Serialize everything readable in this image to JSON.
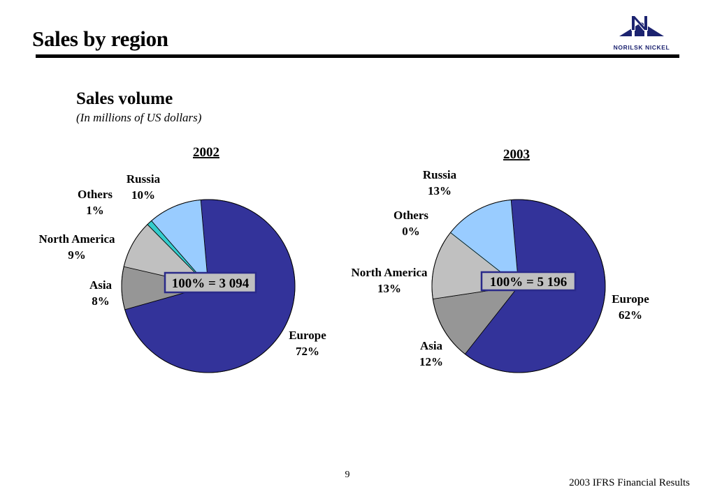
{
  "header": {
    "title": "Sales by region",
    "logo_text": "NORILSK NICKEL"
  },
  "section": {
    "subtitle": "Sales volume",
    "units": "(In millions of US dollars)"
  },
  "footer": {
    "page_number": "9",
    "text": "2003 IFRS Financial Results"
  },
  "colors": {
    "Europe": "#33339a",
    "Asia": "#969696",
    "North America": "#c0c0c0",
    "Others": "#33cccc",
    "Russia": "#99ccff",
    "logo": "#1c2370"
  },
  "chart_data": [
    {
      "type": "pie",
      "title": "2002",
      "total_label": "100% = 3 094",
      "slices": [
        {
          "name": "Europe",
          "value": 72,
          "label": "72%"
        },
        {
          "name": "Asia",
          "value": 8,
          "label": "8%"
        },
        {
          "name": "North America",
          "value": 9,
          "label": "9%"
        },
        {
          "name": "Others",
          "value": 1,
          "label": "1%"
        },
        {
          "name": "Russia",
          "value": 10,
          "label": "10%"
        }
      ]
    },
    {
      "type": "pie",
      "title": "2003",
      "total_label": "100% = 5 196",
      "slices": [
        {
          "name": "Europe",
          "value": 62,
          "label": "62%"
        },
        {
          "name": "Asia",
          "value": 12,
          "label": "12%"
        },
        {
          "name": "North America",
          "value": 13,
          "label": "13%"
        },
        {
          "name": "Others",
          "value": 0,
          "label": "0%"
        },
        {
          "name": "Russia",
          "value": 13,
          "label": "13%"
        }
      ]
    }
  ]
}
